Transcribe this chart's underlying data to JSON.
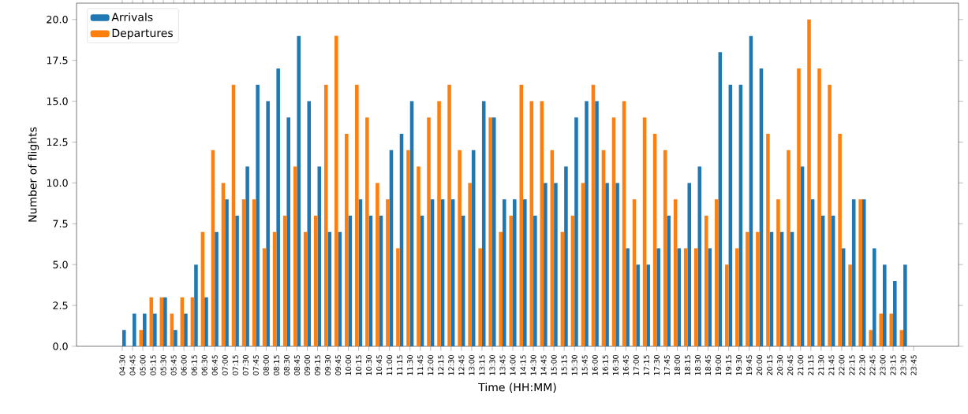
{
  "chart_data": {
    "type": "bar",
    "xlabel": "Time (HH:MM)",
    "ylabel": "Number of flights",
    "categories": [
      "04:30",
      "04:45",
      "05:00",
      "05:15",
      "05:30",
      "05:45",
      "06:00",
      "06:15",
      "06:30",
      "06:45",
      "07:00",
      "07:15",
      "07:30",
      "07:45",
      "08:00",
      "08:15",
      "08:30",
      "08:45",
      "09:00",
      "09:15",
      "09:30",
      "09:45",
      "10:00",
      "10:15",
      "10:30",
      "10:45",
      "11:00",
      "11:15",
      "11:30",
      "11:45",
      "12:00",
      "12:15",
      "12:30",
      "12:45",
      "13:00",
      "13:15",
      "13:30",
      "13:45",
      "14:00",
      "14:15",
      "14:30",
      "14:45",
      "15:00",
      "15:15",
      "15:30",
      "15:45",
      "16:00",
      "16:15",
      "16:30",
      "16:45",
      "17:00",
      "17:15",
      "17:30",
      "17:45",
      "18:00",
      "18:15",
      "18:30",
      "18:45",
      "19:00",
      "19:15",
      "19:30",
      "19:45",
      "20:00",
      "20:15",
      "20:30",
      "20:45",
      "21:00",
      "21:15",
      "21:30",
      "21:45",
      "22:00",
      "22:15",
      "22:30",
      "22:45",
      "23:00",
      "23:15",
      "23:30",
      "23:45"
    ],
    "series": [
      {
        "name": "Arrivals",
        "color": "#1f77b4",
        "values": [
          1,
          2,
          2,
          2,
          3,
          1,
          2,
          5,
          3,
          7,
          9,
          8,
          11,
          16,
          15,
          17,
          14,
          19,
          15,
          11,
          7,
          7,
          8,
          9,
          8,
          8,
          12,
          13,
          15,
          8,
          9,
          9,
          9,
          8,
          12,
          15,
          14,
          9,
          9,
          9,
          8,
          10,
          10,
          11,
          14,
          15,
          15,
          10,
          10,
          6,
          5,
          5,
          6,
          8,
          6,
          10,
          11,
          6,
          18,
          16,
          16,
          19,
          17,
          7,
          7,
          7,
          11,
          9,
          8,
          8,
          6,
          9,
          9,
          6,
          5,
          4,
          5,
          0
        ]
      },
      {
        "name": "Departures",
        "color": "#ff7f0e",
        "values": [
          0,
          0,
          1,
          3,
          3,
          2,
          3,
          3,
          7,
          12,
          10,
          16,
          9,
          9,
          6,
          7,
          8,
          11,
          7,
          8,
          16,
          19,
          13,
          16,
          14,
          10,
          9,
          6,
          12,
          11,
          14,
          15,
          16,
          12,
          10,
          6,
          14,
          7,
          8,
          16,
          15,
          15,
          12,
          7,
          8,
          10,
          16,
          12,
          14,
          15,
          9,
          14,
          13,
          12,
          9,
          6,
          6,
          8,
          9,
          5,
          6,
          7,
          7,
          13,
          9,
          12,
          17,
          20,
          17,
          16,
          13,
          5,
          9,
          1,
          2,
          2,
          1,
          0
        ]
      }
    ],
    "ylim": [
      0,
      21
    ],
    "yticks": [
      {
        "value": 0,
        "label": "0.0"
      },
      {
        "value": 2.5,
        "label": "2.5"
      },
      {
        "value": 5,
        "label": "5.0"
      },
      {
        "value": 7.5,
        "label": "7.5"
      },
      {
        "value": 10,
        "label": "10.0"
      },
      {
        "value": 12.5,
        "label": "12.5"
      },
      {
        "value": 15,
        "label": "15.0"
      },
      {
        "value": 17.5,
        "label": "17.5"
      },
      {
        "value": 20,
        "label": "20.0"
      }
    ],
    "legend": "top left",
    "grid": false
  }
}
